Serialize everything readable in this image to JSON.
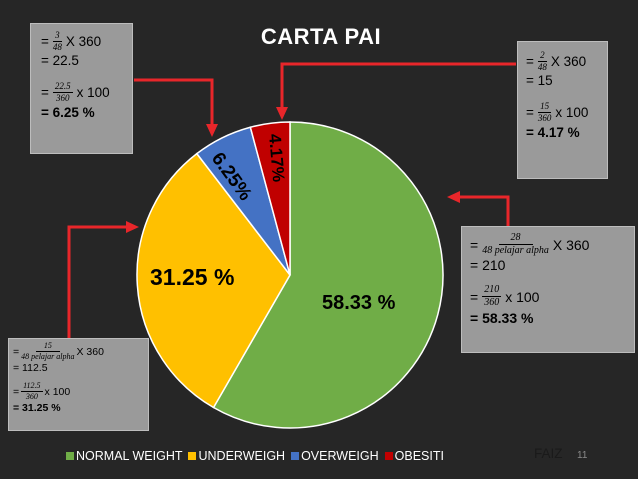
{
  "title": "CARTA PAI",
  "author": "FAIZ",
  "page_number": "11",
  "colors": {
    "background": "#262626",
    "normal_weight": "#70ad47",
    "underweight": "#ffc000",
    "overweight": "#4472c4",
    "obesiti": "#c00000",
    "arrow": "#e8262a",
    "callout_box": "#9a9a9a"
  },
  "callouts": {
    "underweight": {
      "numerator": "15",
      "denominator": "48 pelajar alpha",
      "multiplier": "X 360",
      "result": "= 112.5",
      "percent_numerator": "112.5",
      "percent_denominator": "360",
      "percent_multiplier": "x 100",
      "percent_result": "= 31.25 %"
    },
    "overweight": {
      "numerator": "3",
      "denominator": "48",
      "multiplier": "X 360",
      "result": "= 22.5",
      "percent_numerator": "22.5",
      "percent_denominator": "360",
      "percent_multiplier": "x 100",
      "percent_result": "= 6.25 %"
    },
    "obesiti": {
      "numerator": "2",
      "denominator": "48",
      "multiplier": "X 360",
      "result": "= 15",
      "percent_numerator": "15",
      "percent_denominator": "360",
      "percent_multiplier": "x 100",
      "percent_result": "= 4.17 %"
    },
    "normal_weight": {
      "numerator": "28",
      "denominator": "48 pelajar alpha",
      "multiplier": "X 360",
      "result": "= 210",
      "percent_numerator": "210",
      "percent_denominator": "360",
      "percent_multiplier": "x 100",
      "percent_result": "= 58.33 %"
    }
  },
  "chart_data": {
    "type": "pie",
    "title": "CARTA PAI",
    "categories": [
      "NORMAL WEIGHT",
      "UNDERWEIGH",
      "OVERWEIGH",
      "OBESITI"
    ],
    "values": [
      58.33,
      31.25,
      6.25,
      4.17
    ],
    "data_labels": [
      "58.33 %",
      "31.25 %",
      "6.25%",
      "4.17%"
    ],
    "colors": [
      "#70ad47",
      "#ffc000",
      "#4472c4",
      "#c00000"
    ],
    "legend": "bottom",
    "start": "12 o'clock, clockwise"
  }
}
